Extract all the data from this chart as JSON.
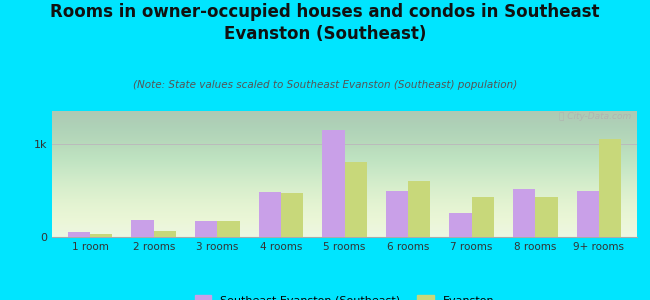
{
  "title": "Rooms in owner-occupied houses and condos in Southeast\nEvanston (Southeast)",
  "subtitle": "(Note: State values scaled to Southeast Evanston (Southeast) population)",
  "categories": [
    "1 room",
    "2 rooms",
    "3 rooms",
    "4 rooms",
    "5 rooms",
    "6 rooms",
    "7 rooms",
    "8 rooms",
    "9+ rooms"
  ],
  "southeast_values": [
    55,
    185,
    175,
    480,
    1150,
    490,
    255,
    510,
    490
  ],
  "evanston_values": [
    30,
    60,
    175,
    475,
    800,
    600,
    430,
    430,
    1050
  ],
  "southeast_color": "#c9a0e8",
  "evanston_color": "#c8d87a",
  "bg_outer": "#00e5ff",
  "bg_plot": "#e8f5e2",
  "title_fontsize": 12,
  "subtitle_fontsize": 7.5,
  "ylabel_1k": "1k",
  "ylabel_0": "0",
  "ylim": [
    0,
    1350
  ],
  "yticks": [
    0,
    1000
  ],
  "bar_width": 0.35,
  "legend_label_se": "Southeast Evanston (Southeast)",
  "legend_label_ev": "Evanston",
  "watermark": "ⓘ City-Data.com"
}
